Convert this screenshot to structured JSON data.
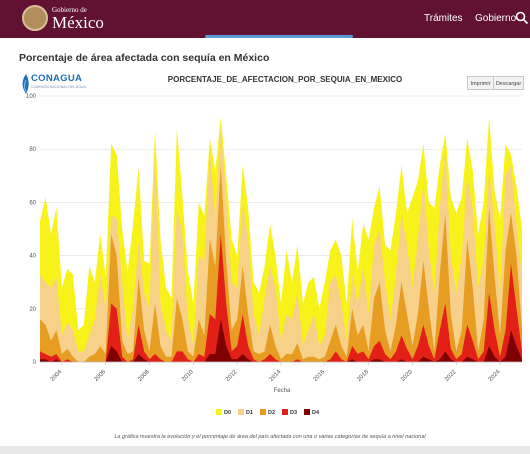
{
  "header": {
    "brand_small": "Gobierno de",
    "brand_large": "México",
    "nav": [
      "Trámites",
      "Gobierno"
    ],
    "search_icon": "search-icon"
  },
  "page": {
    "title": "Porcentaje de área afectada con sequía en México"
  },
  "logo": {
    "name": "CONAGUA",
    "subtitle": "COMISIÓN NACIONAL DEL AGUA"
  },
  "toolbar": {
    "print_label": "Imprimir",
    "download_label": "Descargar"
  },
  "chart_data": {
    "type": "area",
    "title": "PORCENTAJE_DE_AFECTACION_POR_SEQUIA_EN_MEXICO",
    "xlabel": "Fecha",
    "ylabel": "",
    "xlim": [
      2003.0,
      2025.0
    ],
    "ylim": [
      0,
      100
    ],
    "y_ticks": [
      0,
      20,
      40,
      60,
      80,
      100
    ],
    "x_ticks": [
      "2004",
      "2006",
      "2008",
      "2010",
      "2012",
      "2014",
      "2016",
      "2018",
      "2020",
      "2022",
      "2024"
    ],
    "grid": true,
    "legend_position": "bottom",
    "x": [
      2003.0,
      2003.25,
      2003.5,
      2003.75,
      2004.0,
      2004.25,
      2004.5,
      2004.75,
      2005.0,
      2005.25,
      2005.5,
      2005.75,
      2006.0,
      2006.25,
      2006.5,
      2006.75,
      2007.0,
      2007.25,
      2007.5,
      2007.75,
      2008.0,
      2008.25,
      2008.5,
      2008.75,
      2009.0,
      2009.25,
      2009.5,
      2009.75,
      2010.0,
      2010.25,
      2010.5,
      2010.75,
      2011.0,
      2011.25,
      2011.5,
      2011.75,
      2012.0,
      2012.25,
      2012.5,
      2012.75,
      2013.0,
      2013.25,
      2013.5,
      2013.75,
      2014.0,
      2014.25,
      2014.5,
      2014.75,
      2015.0,
      2015.25,
      2015.5,
      2015.75,
      2016.0,
      2016.25,
      2016.5,
      2016.75,
      2017.0,
      2017.25,
      2017.5,
      2017.75,
      2018.0,
      2018.25,
      2018.5,
      2018.75,
      2019.0,
      2019.25,
      2019.5,
      2019.75,
      2020.0,
      2020.25,
      2020.5,
      2020.75,
      2021.0,
      2021.25,
      2021.5,
      2021.75,
      2022.0,
      2022.25,
      2022.5,
      2022.75,
      2023.0,
      2023.25,
      2023.5,
      2023.75,
      2024.0,
      2024.25,
      2024.5,
      2024.75,
      2025.0
    ],
    "series": [
      {
        "name": "D0",
        "color": "#f7f21a",
        "values": [
          53,
          62,
          48,
          58,
          28,
          35,
          33,
          12,
          14,
          36,
          30,
          48,
          32,
          82,
          78,
          50,
          34,
          52,
          73,
          38,
          37,
          87,
          46,
          28,
          24,
          88,
          62,
          34,
          22,
          60,
          55,
          84,
          72,
          92,
          70,
          46,
          40,
          74,
          58,
          30,
          26,
          36,
          52,
          40,
          22,
          42,
          30,
          44,
          22,
          30,
          32,
          20,
          30,
          42,
          46,
          40,
          22,
          54,
          34,
          52,
          46,
          58,
          66,
          44,
          42,
          56,
          74,
          56,
          62,
          68,
          82,
          60,
          58,
          74,
          86,
          62,
          56,
          62,
          84,
          72,
          48,
          60,
          92,
          64,
          54,
          82,
          78,
          66,
          50
        ]
      },
      {
        "name": "D1",
        "color": "#f7d08a",
        "values": [
          33,
          30,
          28,
          32,
          10,
          15,
          12,
          4,
          4,
          10,
          16,
          33,
          20,
          55,
          54,
          30,
          8,
          20,
          45,
          26,
          20,
          80,
          22,
          12,
          8,
          58,
          48,
          16,
          6,
          40,
          38,
          80,
          54,
          88,
          62,
          30,
          28,
          60,
          46,
          18,
          10,
          24,
          36,
          28,
          8,
          18,
          16,
          26,
          6,
          12,
          18,
          6,
          10,
          30,
          33,
          22,
          8,
          33,
          22,
          36,
          18,
          44,
          50,
          30,
          16,
          33,
          56,
          44,
          28,
          46,
          68,
          42,
          26,
          58,
          80,
          40,
          26,
          40,
          70,
          58,
          28,
          38,
          72,
          52,
          26,
          70,
          74,
          52,
          32
        ]
      },
      {
        "name": "D2",
        "color": "#e79c22",
        "values": [
          16,
          14,
          8,
          12,
          3,
          5,
          2,
          0,
          0,
          2,
          3,
          6,
          3,
          48,
          40,
          8,
          3,
          4,
          32,
          12,
          4,
          22,
          6,
          2,
          2,
          24,
          16,
          4,
          2,
          16,
          10,
          46,
          36,
          74,
          38,
          12,
          16,
          36,
          18,
          4,
          3,
          4,
          14,
          6,
          1,
          3,
          3,
          7,
          1,
          2,
          2,
          1,
          2,
          8,
          14,
          6,
          2,
          20,
          10,
          14,
          4,
          24,
          30,
          12,
          4,
          14,
          30,
          18,
          6,
          18,
          38,
          20,
          4,
          33,
          56,
          18,
          4,
          12,
          46,
          28,
          4,
          16,
          58,
          32,
          10,
          42,
          56,
          40,
          12
        ]
      },
      {
        "name": "D3",
        "color": "#e32017",
        "values": [
          4,
          3,
          2,
          3,
          0,
          1,
          0,
          0,
          0,
          0,
          0,
          0,
          0,
          22,
          20,
          2,
          0,
          1,
          14,
          4,
          1,
          3,
          1,
          0,
          0,
          4,
          4,
          1,
          0,
          3,
          2,
          18,
          16,
          48,
          22,
          4,
          6,
          18,
          6,
          1,
          0,
          1,
          3,
          1,
          0,
          0,
          0,
          1,
          0,
          0,
          0,
          0,
          0,
          1,
          4,
          1,
          0,
          6,
          3,
          4,
          1,
          6,
          8,
          3,
          1,
          4,
          10,
          5,
          1,
          6,
          14,
          6,
          1,
          12,
          22,
          5,
          1,
          3,
          14,
          8,
          1,
          4,
          26,
          12,
          2,
          12,
          37,
          20,
          4
        ]
      },
      {
        "name": "D4",
        "color": "#7f0000",
        "values": [
          1,
          1,
          0,
          1,
          0,
          0,
          0,
          0,
          0,
          0,
          0,
          0,
          0,
          6,
          4,
          0,
          0,
          0,
          3,
          1,
          0,
          0,
          0,
          0,
          0,
          0,
          0,
          0,
          0,
          0,
          0,
          3,
          3,
          16,
          6,
          1,
          1,
          3,
          1,
          0,
          0,
          0,
          0,
          0,
          0,
          0,
          0,
          0,
          0,
          0,
          0,
          0,
          0,
          0,
          0,
          0,
          0,
          1,
          0,
          0,
          0,
          1,
          1,
          0,
          0,
          0,
          1,
          0,
          0,
          0,
          2,
          1,
          0,
          1,
          4,
          1,
          0,
          0,
          2,
          1,
          0,
          0,
          6,
          2,
          0,
          2,
          12,
          6,
          1
        ]
      }
    ]
  },
  "caption": "La gráfica muestra la evolución y el porcentaje de área del país afectada con una o varias categorías de sequía a nivel nacional"
}
